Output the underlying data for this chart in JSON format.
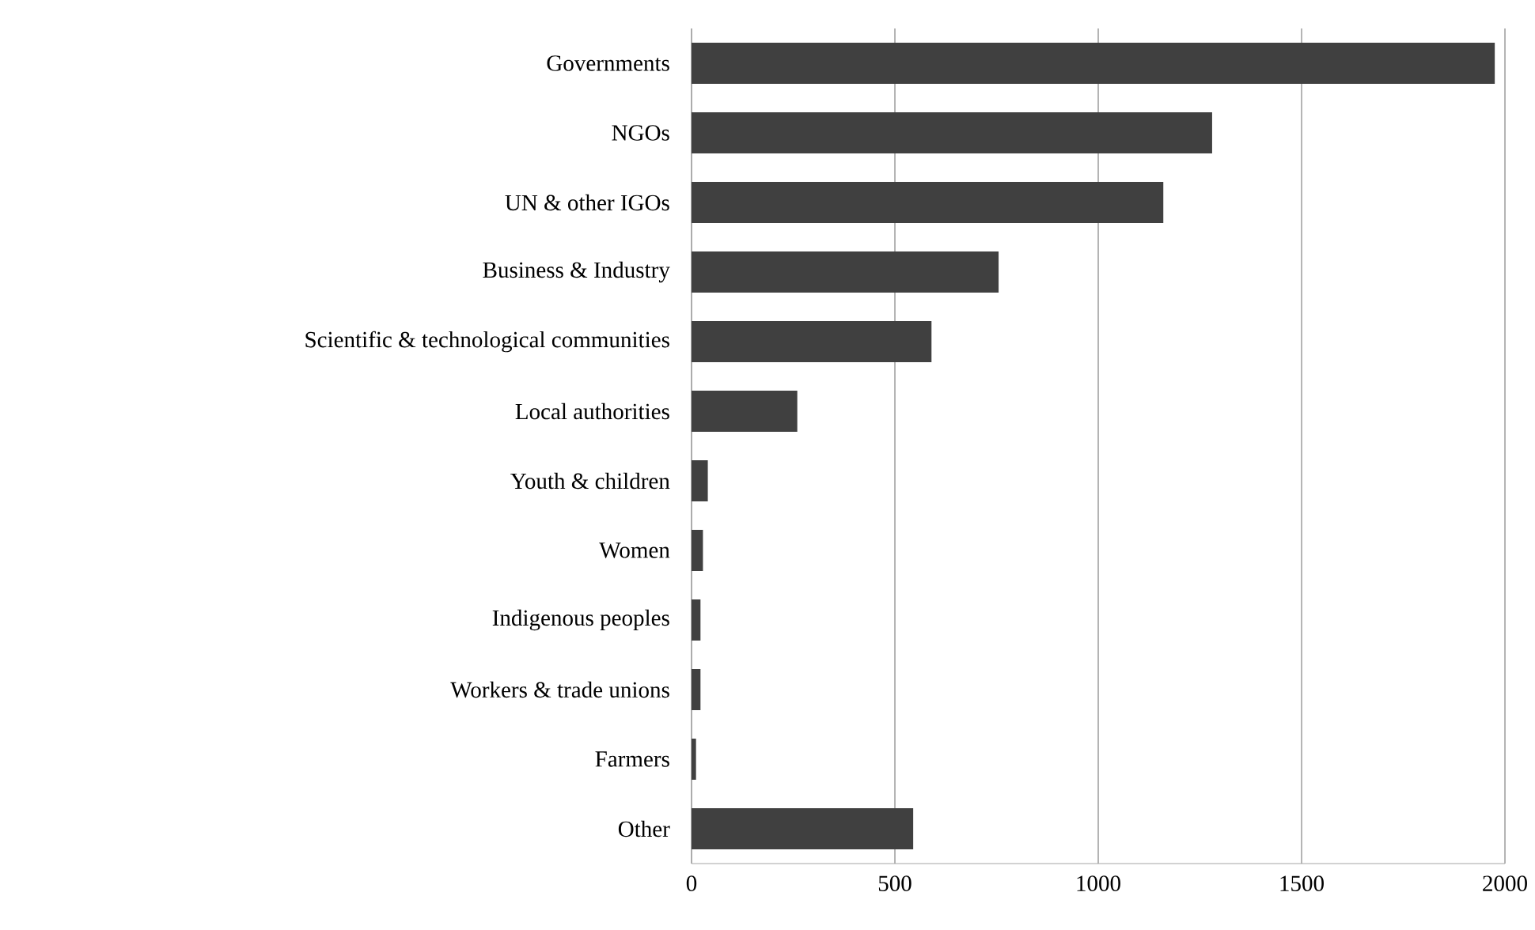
{
  "chart_data": {
    "type": "bar",
    "orientation": "horizontal",
    "categories": [
      "Governments",
      "NGOs",
      "UN & other IGOs",
      "Business & Industry",
      "Scientific & technological communities",
      "Local authorities",
      "Youth & children",
      "Women",
      "Indigenous peoples",
      "Workers & trade unions",
      "Farmers",
      "Other"
    ],
    "values": [
      1975,
      1280,
      1160,
      755,
      590,
      260,
      40,
      28,
      22,
      22,
      11,
      545
    ],
    "color": "#404040",
    "xlim": [
      0,
      2000
    ],
    "xticks": [
      0,
      500,
      1000,
      1500,
      2000
    ],
    "grid": "x"
  }
}
